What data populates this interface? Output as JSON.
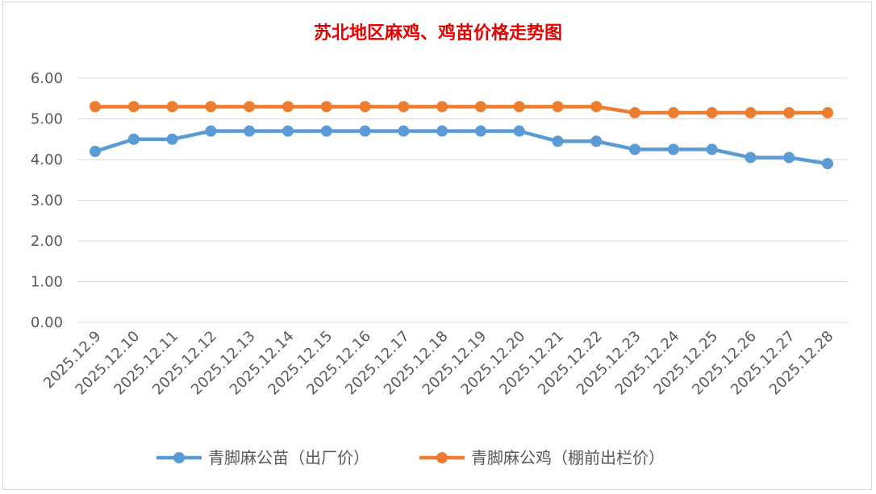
{
  "chart_data": {
    "type": "line",
    "title": "苏北地区麻鸡、鸡苗价格走势图",
    "xlabel": "",
    "ylabel": "",
    "categories": [
      "2025.12.9",
      "2025.12.10",
      "2025.12.11",
      "2025.12.12",
      "2025.12.13",
      "2025.12.14",
      "2025.12.15",
      "2025.12.16",
      "2025.12.17",
      "2025.12.18",
      "2025.12.19",
      "2025.12.20",
      "2025.12.21",
      "2025.12.22",
      "2025.12.23",
      "2025.12.24",
      "2025.12.25",
      "2025.12.26",
      "2025.12.27",
      "2025.12.28"
    ],
    "ylim": [
      0,
      6
    ],
    "yticks": [
      "0.00",
      "1.00",
      "2.00",
      "3.00",
      "4.00",
      "5.00",
      "6.00"
    ],
    "grid": true,
    "legend_position": "bottom",
    "series": [
      {
        "name": "青脚麻公苗（出厂价）",
        "color": "#5b9bd5",
        "values": [
          4.2,
          4.5,
          4.5,
          4.7,
          4.7,
          4.7,
          4.7,
          4.7,
          4.7,
          4.7,
          4.7,
          4.7,
          4.45,
          4.45,
          4.25,
          4.25,
          4.25,
          4.05,
          4.05,
          3.9
        ]
      },
      {
        "name": "青脚麻公鸡（棚前出栏价）",
        "color": "#ed7d31",
        "values": [
          5.3,
          5.3,
          5.3,
          5.3,
          5.3,
          5.3,
          5.3,
          5.3,
          5.3,
          5.3,
          5.3,
          5.3,
          5.3,
          5.3,
          5.15,
          5.15,
          5.15,
          5.15,
          5.15,
          5.15
        ]
      }
    ]
  }
}
